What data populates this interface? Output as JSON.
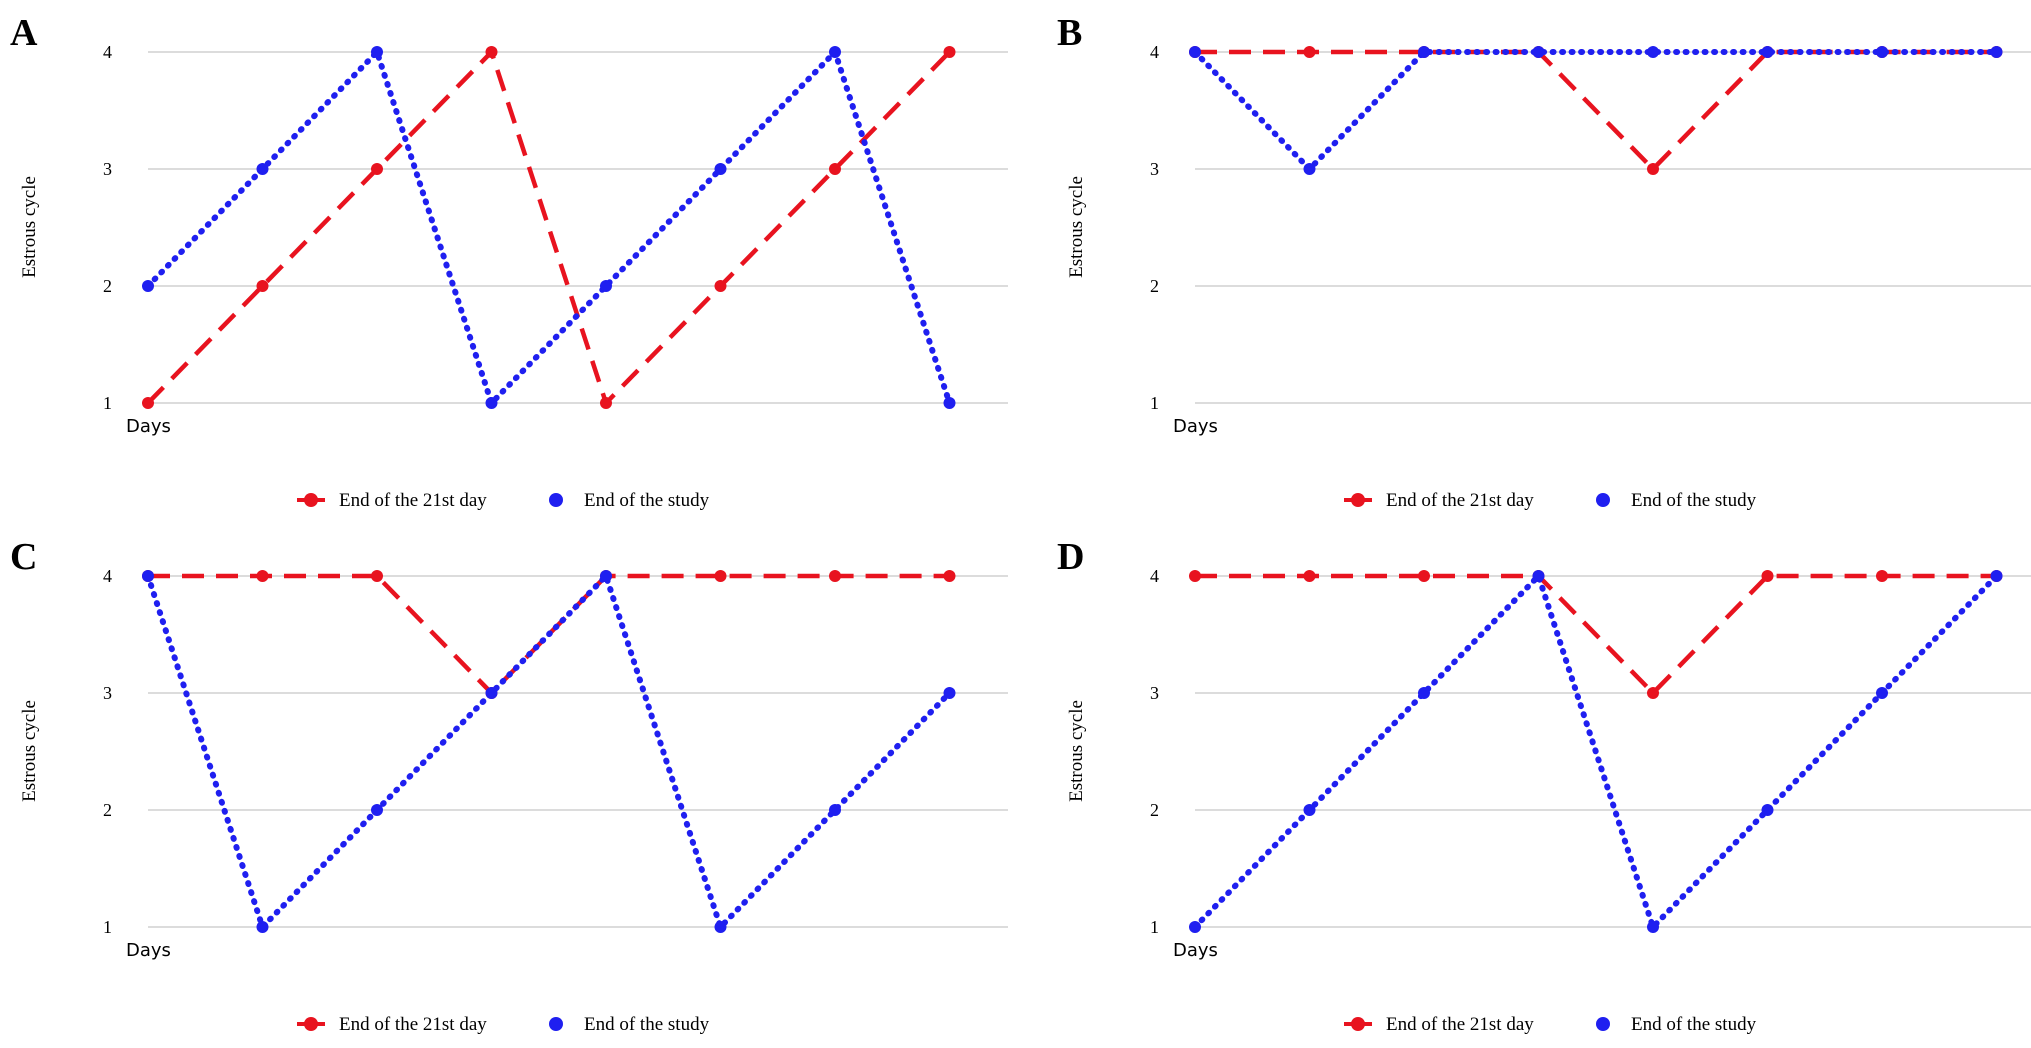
{
  "chart_data": [
    {
      "type": "line",
      "panel": "A",
      "ylabel": "Estrous cycle",
      "xlabel": "Days",
      "ylim": [
        1,
        4
      ],
      "yticks": [
        1,
        2,
        3,
        4
      ],
      "grid": true,
      "legend_position": "bottom",
      "x": [
        1,
        2,
        3,
        4,
        5,
        6,
        7,
        8
      ],
      "series": [
        {
          "name": "End of the 21st day",
          "color": "#e8131f",
          "style": "dashed",
          "values": [
            1,
            2,
            3,
            4,
            1,
            2,
            3,
            4
          ]
        },
        {
          "name": "End of the study",
          "color": "#1f1ff0",
          "style": "dotted",
          "values": [
            2,
            3,
            4,
            1,
            2,
            3,
            4,
            1
          ]
        }
      ]
    },
    {
      "type": "line",
      "panel": "B",
      "ylabel": "Estrous cycle",
      "xlabel": "Days",
      "ylim": [
        1,
        4
      ],
      "yticks": [
        1,
        2,
        3,
        4
      ],
      "grid": true,
      "legend_position": "bottom",
      "x": [
        1,
        2,
        3,
        4,
        5,
        6,
        7,
        8
      ],
      "series": [
        {
          "name": "End of the 21st day",
          "color": "#e8131f",
          "style": "dashed",
          "values": [
            4,
            4,
            4,
            4,
            3,
            4,
            4,
            4
          ]
        },
        {
          "name": "End of the study",
          "color": "#1f1ff0",
          "style": "dotted",
          "values": [
            4,
            3,
            4,
            4,
            4,
            4,
            4,
            4
          ]
        }
      ]
    },
    {
      "type": "line",
      "panel": "C",
      "ylabel": "Estrous cycle",
      "xlabel": "Days",
      "ylim": [
        1,
        4
      ],
      "yticks": [
        1,
        2,
        3,
        4
      ],
      "grid": true,
      "legend_position": "bottom",
      "x": [
        1,
        2,
        3,
        4,
        5,
        6,
        7,
        8
      ],
      "series": [
        {
          "name": "End of the 21st day",
          "color": "#e8131f",
          "style": "dashed",
          "values": [
            4,
            4,
            4,
            3,
            4,
            4,
            4,
            4
          ]
        },
        {
          "name": "End of the study",
          "color": "#1f1ff0",
          "style": "dotted",
          "values": [
            4,
            1,
            2,
            3,
            4,
            1,
            2,
            3
          ]
        }
      ]
    },
    {
      "type": "line",
      "panel": "D",
      "ylabel": "Estrous cycle",
      "xlabel": "Days",
      "ylim": [
        1,
        4
      ],
      "yticks": [
        1,
        2,
        3,
        4
      ],
      "grid": true,
      "legend_position": "bottom",
      "x": [
        1,
        2,
        3,
        4,
        5,
        6,
        7,
        8
      ],
      "series": [
        {
          "name": "End of the 21st day",
          "color": "#e8131f",
          "style": "dashed",
          "values": [
            4,
            4,
            4,
            4,
            3,
            4,
            4,
            4
          ]
        },
        {
          "name": "End of the study",
          "color": "#1f1ff0",
          "style": "dotted",
          "values": [
            1,
            2,
            3,
            4,
            1,
            2,
            3,
            4
          ]
        }
      ]
    }
  ]
}
